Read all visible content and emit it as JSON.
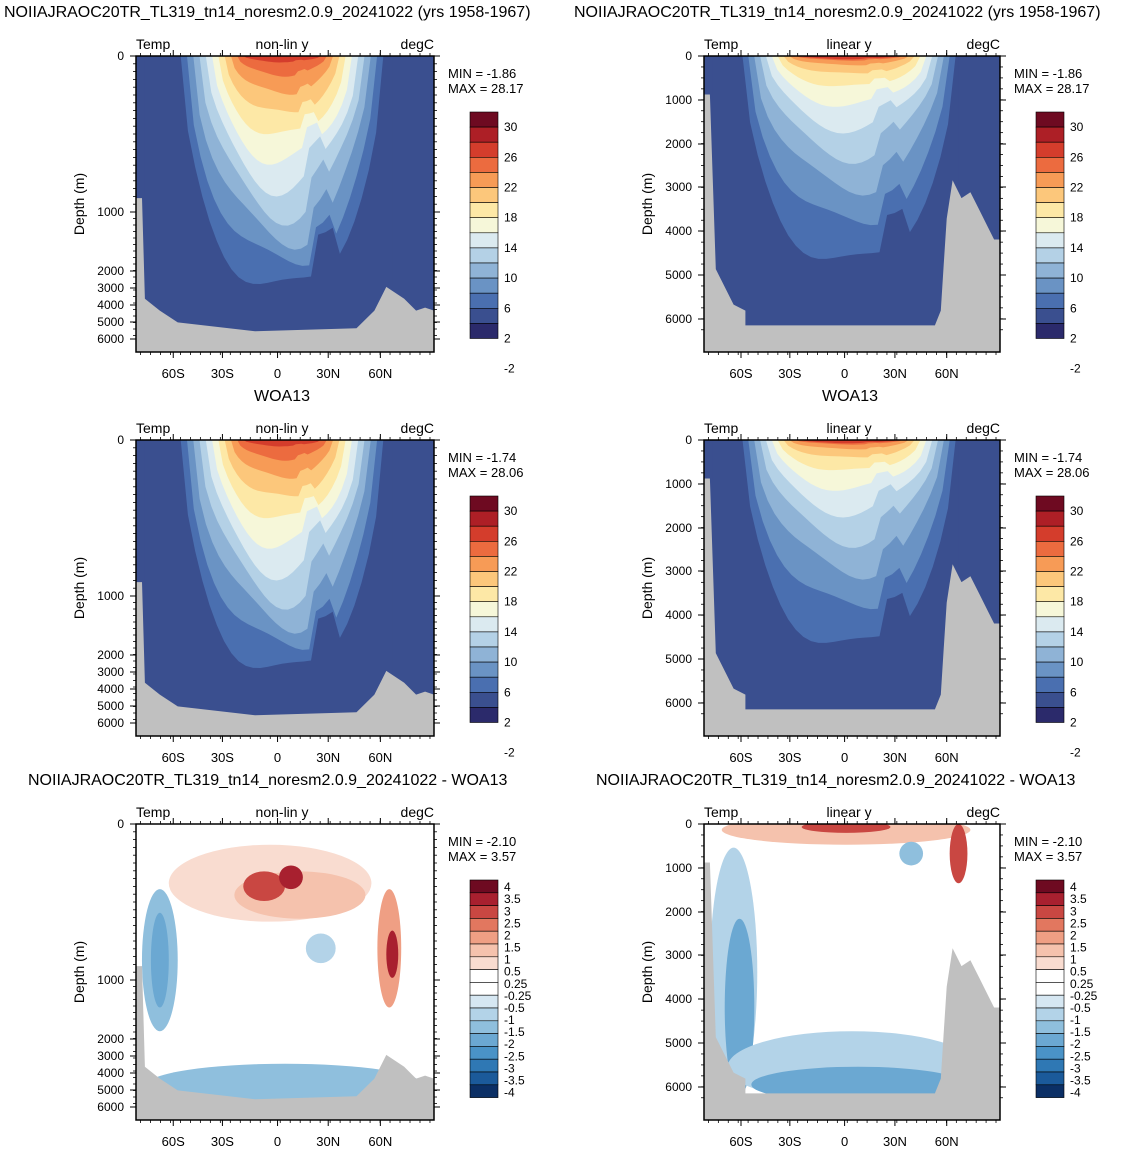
{
  "titles": {
    "row1_left": "NOIIAJRAOC20TR_TL319_tn14_noresm2.0.9_20241022 (yrs 1958-1967)",
    "row1_right": "NOIIAJRAOC20TR_TL319_tn14_noresm2.0.9_20241022 (yrs 1958-1967)",
    "row2": "WOA13",
    "row2_right": "WOA13",
    "row3_left": "NOIIAJRAOC20TR_TL319_tn14_noresm2.0.9_20241022 - WOA13",
    "row3_right": "NOIIAJRAOC20TR_TL319_tn14_noresm2.0.9_20241022 - WOA13"
  },
  "colors": {
    "land": "#c0c0c0",
    "temp_levels": [
      "#2b2a6b",
      "#3a4f8f",
      "#4a6fb0",
      "#6a93c4",
      "#8fb3d6",
      "#b4d1e6",
      "#dbeaf0",
      "#f6f7d9",
      "#fde8a6",
      "#fcc77b",
      "#f79b56",
      "#ec6b3f",
      "#d43d2c",
      "#ad1f26",
      "#6e0a21"
    ],
    "diff_levels": [
      "#0b2f65",
      "#1b5a9a",
      "#2f78b4",
      "#4a93c7",
      "#6ba8d2",
      "#8fbfdd",
      "#b3d3e8",
      "#d6e7f2",
      "#ffffff",
      "#ffffff",
      "#f9dcd0",
      "#f5c2ad",
      "#ef9f84",
      "#e2775f",
      "#c94742",
      "#a8202f",
      "#6e0a21"
    ]
  },
  "chart_data": [
    {
      "type": "heatmap",
      "panel": "model-nonlin",
      "left_label": "Temp",
      "center_label": "non-lin y",
      "right_label": "degC",
      "ylabel": "Depth (m)",
      "min_text": "MIN =  -1.86",
      "max_text": "MAX =  28.17",
      "y_scale": "non-linear",
      "x_ticks": [
        "60S",
        "30S",
        "0",
        "30N",
        "60N"
      ],
      "y_ticks": [
        "0",
        "1000",
        "2000",
        "3000",
        "4000",
        "5000",
        "6000"
      ],
      "colorbar_labels": [
        "30",
        "26",
        "22",
        "18",
        "14",
        "10",
        "6",
        "2",
        "-2"
      ],
      "legend": "right"
    },
    {
      "type": "heatmap",
      "panel": "model-linear",
      "left_label": "Temp",
      "center_label": "linear y",
      "right_label": "degC",
      "ylabel": "Depth (m)",
      "min_text": "MIN =  -1.86",
      "max_text": "MAX =  28.17",
      "y_scale": "linear",
      "ylim": [
        0,
        6500
      ],
      "x_ticks": [
        "60S",
        "30S",
        "0",
        "30N",
        "60N"
      ],
      "y_ticks": [
        "0",
        "1000",
        "2000",
        "3000",
        "4000",
        "5000",
        "6000"
      ],
      "colorbar_labels": [
        "30",
        "26",
        "22",
        "18",
        "14",
        "10",
        "6",
        "2",
        "-2"
      ],
      "legend": "right"
    },
    {
      "type": "heatmap",
      "panel": "woa-nonlin",
      "left_label": "Temp",
      "center_label": "non-lin y",
      "right_label": "degC",
      "ylabel": "Depth (m)",
      "min_text": "MIN =  -1.74",
      "max_text": "MAX =  28.06",
      "y_scale": "non-linear",
      "x_ticks": [
        "60S",
        "30S",
        "0",
        "30N",
        "60N"
      ],
      "y_ticks": [
        "0",
        "1000",
        "2000",
        "3000",
        "4000",
        "5000",
        "6000"
      ],
      "colorbar_labels": [
        "30",
        "26",
        "22",
        "18",
        "14",
        "10",
        "6",
        "2",
        "-2"
      ],
      "legend": "right"
    },
    {
      "type": "heatmap",
      "panel": "woa-linear",
      "left_label": "Temp",
      "center_label": "linear y",
      "right_label": "degC",
      "ylabel": "Depth (m)",
      "min_text": "MIN =  -1.74",
      "max_text": "MAX =  28.06",
      "y_scale": "linear",
      "ylim": [
        0,
        6500
      ],
      "x_ticks": [
        "60S",
        "30S",
        "0",
        "30N",
        "60N"
      ],
      "y_ticks": [
        "0",
        "1000",
        "2000",
        "3000",
        "4000",
        "5000",
        "6000"
      ],
      "colorbar_labels": [
        "30",
        "26",
        "22",
        "18",
        "14",
        "10",
        "6",
        "2",
        "-2"
      ],
      "legend": "right"
    },
    {
      "type": "heatmap",
      "panel": "diff-nonlin",
      "left_label": "Temp",
      "center_label": "non-lin y",
      "right_label": "degC",
      "ylabel": "Depth (m)",
      "min_text": "MIN =  -2.10",
      "max_text": "MAX =   3.57",
      "y_scale": "non-linear",
      "x_ticks": [
        "60S",
        "30S",
        "0",
        "30N",
        "60N"
      ],
      "y_ticks": [
        "0",
        "1000",
        "2000",
        "3000",
        "4000",
        "5000",
        "6000"
      ],
      "colorbar_labels": [
        "4",
        "3.5",
        "3",
        "2.5",
        "2",
        "1.5",
        "1",
        "0.5",
        "0.25",
        "-0.25",
        "-0.5",
        "-1",
        "-1.5",
        "-2",
        "-2.5",
        "-3",
        "-3.5",
        "-4"
      ],
      "legend": "right"
    },
    {
      "type": "heatmap",
      "panel": "diff-linear",
      "left_label": "Temp",
      "center_label": "linear y",
      "right_label": "degC",
      "ylabel": "Depth (m)",
      "min_text": "MIN =  -2.10",
      "max_text": "MAX =   3.57",
      "y_scale": "linear",
      "ylim": [
        0,
        6500
      ],
      "x_ticks": [
        "60S",
        "30S",
        "0",
        "30N",
        "60N"
      ],
      "y_ticks": [
        "0",
        "1000",
        "2000",
        "3000",
        "4000",
        "5000",
        "6000"
      ],
      "colorbar_labels": [
        "4",
        "3.5",
        "3",
        "2.5",
        "2",
        "1.5",
        "1",
        "0.5",
        "0.25",
        "-0.25",
        "-0.5",
        "-1",
        "-1.5",
        "-2",
        "-2.5",
        "-3",
        "-3.5",
        "-4"
      ],
      "legend": "right"
    }
  ]
}
